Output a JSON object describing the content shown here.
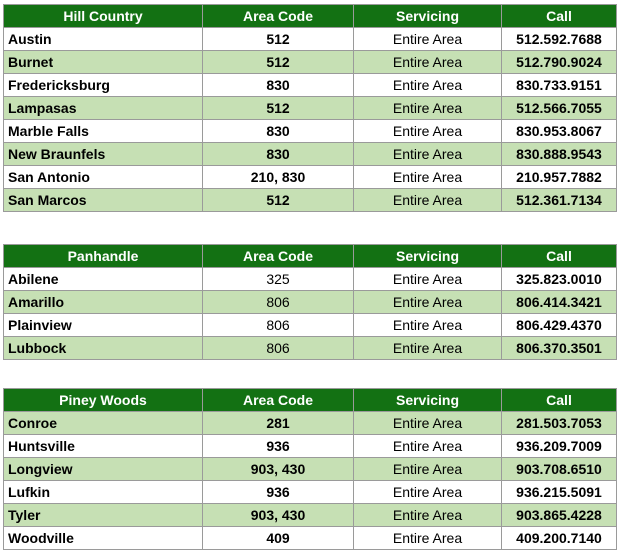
{
  "colors": {
    "header_bg": "#137113",
    "header_text": "#ffffff",
    "alt_row_bg": "#c6e0b4",
    "grid": "#9a9a9a"
  },
  "tables": [
    {
      "region": "Hill Country",
      "headers": [
        "Area Code",
        "Servicing",
        "Call"
      ],
      "rows": [
        {
          "city": "Austin",
          "code": "512",
          "servicing": "Entire Area",
          "call": "512.592.7688"
        },
        {
          "city": "Burnet",
          "code": "512",
          "servicing": "Entire Area",
          "call": "512.790.9024"
        },
        {
          "city": "Fredericksburg",
          "code": "830",
          "servicing": "Entire Area",
          "call": "830.733.9151"
        },
        {
          "city": "Lampasas",
          "code": "512",
          "servicing": "Entire Area",
          "call": "512.566.7055"
        },
        {
          "city": "Marble Falls",
          "code": "830",
          "servicing": "Entire Area",
          "call": "830.953.8067"
        },
        {
          "city": "New Braunfels",
          "code": "830",
          "servicing": "Entire Area",
          "call": "830.888.9543"
        },
        {
          "city": "San Antonio",
          "code": "210, 830",
          "servicing": "Entire Area",
          "call": "210.957.7882"
        },
        {
          "city": "San Marcos",
          "code": "512",
          "servicing": "Entire Area",
          "call": "512.361.7134"
        }
      ]
    },
    {
      "region": "Panhandle",
      "headers": [
        "Area Code",
        "Servicing",
        "Call"
      ],
      "rows": [
        {
          "city": "Abilene",
          "code": "325",
          "servicing": "Entire Area",
          "call": "325.823.0010"
        },
        {
          "city": "Amarillo",
          "code": "806",
          "servicing": "Entire Area",
          "call": "806.414.3421"
        },
        {
          "city": "Plainview",
          "code": "806",
          "servicing": "Entire Area",
          "call": "806.429.4370"
        },
        {
          "city": "Lubbock",
          "code": "806",
          "servicing": "Entire Area",
          "call": "806.370.3501"
        }
      ]
    },
    {
      "region": "Piney Woods",
      "headers": [
        "Area Code",
        "Servicing",
        "Call"
      ],
      "rows": [
        {
          "city": "Conroe",
          "code": "281",
          "servicing": "Entire Area",
          "call": "281.503.7053"
        },
        {
          "city": "Huntsville",
          "code": "936",
          "servicing": "Entire Area",
          "call": "936.209.7009"
        },
        {
          "city": "Longview",
          "code": "903, 430",
          "servicing": "Entire Area",
          "call": "903.708.6510"
        },
        {
          "city": "Lufkin",
          "code": "936",
          "servicing": "Entire Area",
          "call": "936.215.5091"
        },
        {
          "city": "Tyler",
          "code": "903, 430",
          "servicing": "Entire Area",
          "call": "903.865.4228"
        },
        {
          "city": "Woodville",
          "code": "409",
          "servicing": "Entire Area",
          "call": "409.200.7140"
        }
      ]
    }
  ]
}
